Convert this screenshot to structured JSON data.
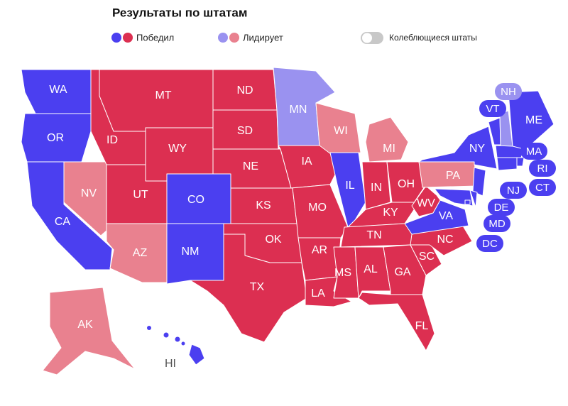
{
  "header": {
    "title": "Результаты по штатам"
  },
  "legend": [
    {
      "label": "Победил",
      "colors": [
        "#4b3ff0",
        "#dc2f51"
      ]
    },
    {
      "label": "Лидирует",
      "colors": [
        "#9a92f0",
        "#e9818f"
      ]
    }
  ],
  "toggle": {
    "label": "Колеблющиеся штаты",
    "on": false
  },
  "states": [
    {
      "code": "WA",
      "color": "#4b3ff0"
    },
    {
      "code": "OR",
      "color": "#4b3ff0"
    },
    {
      "code": "CA",
      "color": "#4b3ff0"
    },
    {
      "code": "NV",
      "color": "#e9818f"
    },
    {
      "code": "ID",
      "color": "#dc2f51"
    },
    {
      "code": "MT",
      "color": "#dc2f51"
    },
    {
      "code": "WY",
      "color": "#dc2f51"
    },
    {
      "code": "UT",
      "color": "#dc2f51"
    },
    {
      "code": "CO",
      "color": "#4b3ff0"
    },
    {
      "code": "AZ",
      "color": "#e9818f"
    },
    {
      "code": "NM",
      "color": "#4b3ff0"
    },
    {
      "code": "ND",
      "color": "#dc2f51"
    },
    {
      "code": "SD",
      "color": "#dc2f51"
    },
    {
      "code": "NE",
      "color": "#dc2f51"
    },
    {
      "code": "KS",
      "color": "#dc2f51"
    },
    {
      "code": "OK",
      "color": "#dc2f51"
    },
    {
      "code": "TX",
      "color": "#dc2f51"
    },
    {
      "code": "MN",
      "color": "#9a92f0"
    },
    {
      "code": "IA",
      "color": "#dc2f51"
    },
    {
      "code": "MO",
      "color": "#dc2f51"
    },
    {
      "code": "AR",
      "color": "#dc2f51"
    },
    {
      "code": "LA",
      "color": "#dc2f51"
    },
    {
      "code": "WI",
      "color": "#e9818f"
    },
    {
      "code": "IL",
      "color": "#4b3ff0"
    },
    {
      "code": "MI",
      "color": "#e9818f"
    },
    {
      "code": "IN",
      "color": "#dc2f51"
    },
    {
      "code": "OH",
      "color": "#dc2f51"
    },
    {
      "code": "KY",
      "color": "#dc2f51"
    },
    {
      "code": "TN",
      "color": "#dc2f51"
    },
    {
      "code": "MS",
      "color": "#dc2f51"
    },
    {
      "code": "AL",
      "color": "#dc2f51"
    },
    {
      "code": "GA",
      "color": "#dc2f51"
    },
    {
      "code": "FL",
      "color": "#dc2f51"
    },
    {
      "code": "SC",
      "color": "#dc2f51"
    },
    {
      "code": "NC",
      "color": "#dc2f51"
    },
    {
      "code": "VA",
      "color": "#4b3ff0"
    },
    {
      "code": "WV",
      "color": "#dc2f51"
    },
    {
      "code": "PA",
      "color": "#e9818f"
    },
    {
      "code": "NY",
      "color": "#4b3ff0"
    },
    {
      "code": "NJ",
      "color": "#4b3ff0"
    },
    {
      "code": "DE",
      "color": "#4b3ff0"
    },
    {
      "code": "MD",
      "color": "#4b3ff0"
    },
    {
      "code": "VT",
      "color": "#4b3ff0"
    },
    {
      "code": "NH",
      "color": "#9a92f0"
    },
    {
      "code": "ME",
      "color": "#4b3ff0"
    },
    {
      "code": "MA",
      "color": "#4b3ff0"
    },
    {
      "code": "RI",
      "color": "#4b3ff0"
    },
    {
      "code": "CT",
      "color": "#4b3ff0"
    },
    {
      "code": "DC",
      "color": "#4b3ff0"
    },
    {
      "code": "AK",
      "color": "#e9818f"
    },
    {
      "code": "HI",
      "color": "#4b3ff0"
    }
  ]
}
